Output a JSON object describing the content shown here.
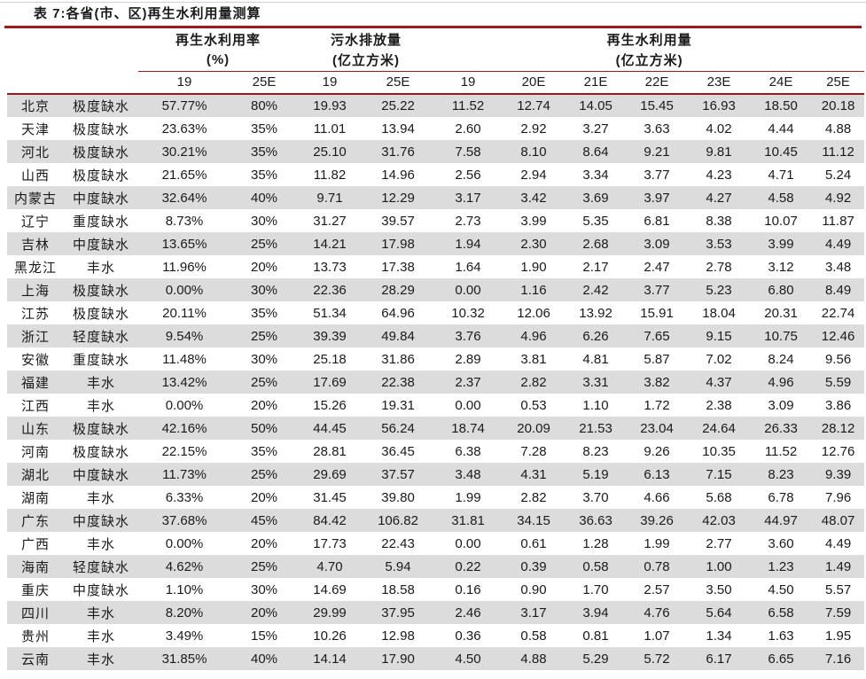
{
  "title": "表 7:各省(市、区)再生水利用量测算",
  "colors": {
    "accent_line": "#9B1A1D",
    "row_alt_background": "#DCDCDC",
    "text": "#1A1A1A"
  },
  "table": {
    "column_groups": [
      {
        "title": "再生水利用率",
        "unit": "(%)",
        "span": 2
      },
      {
        "title": "污水排放量",
        "unit": "(亿立方米)",
        "span": 2
      },
      {
        "title": "再生水利用量",
        "unit": "(亿立方米)",
        "span": 7
      }
    ],
    "year_headers": [
      "19",
      "25E",
      "19",
      "25E",
      "19",
      "20E",
      "21E",
      "22E",
      "23E",
      "24E",
      "25E"
    ],
    "rows": [
      {
        "province": "北京",
        "scarcity": "极度缺水",
        "values": [
          "57.77%",
          "80%",
          "19.93",
          "25.22",
          "11.52",
          "12.74",
          "14.05",
          "15.45",
          "16.93",
          "18.50",
          "20.18"
        ]
      },
      {
        "province": "天津",
        "scarcity": "极度缺水",
        "values": [
          "23.63%",
          "35%",
          "11.01",
          "13.94",
          "2.60",
          "2.92",
          "3.27",
          "3.63",
          "4.02",
          "4.44",
          "4.88"
        ]
      },
      {
        "province": "河北",
        "scarcity": "极度缺水",
        "values": [
          "30.21%",
          "35%",
          "25.10",
          "31.76",
          "7.58",
          "8.10",
          "8.64",
          "9.21",
          "9.81",
          "10.45",
          "11.12"
        ]
      },
      {
        "province": "山西",
        "scarcity": "极度缺水",
        "values": [
          "21.65%",
          "35%",
          "11.82",
          "14.96",
          "2.56",
          "2.94",
          "3.34",
          "3.77",
          "4.23",
          "4.71",
          "5.24"
        ]
      },
      {
        "province": "内蒙古",
        "scarcity": "中度缺水",
        "values": [
          "32.64%",
          "40%",
          "9.71",
          "12.29",
          "3.17",
          "3.42",
          "3.69",
          "3.97",
          "4.27",
          "4.58",
          "4.92"
        ]
      },
      {
        "province": "辽宁",
        "scarcity": "重度缺水",
        "values": [
          "8.73%",
          "30%",
          "31.27",
          "39.57",
          "2.73",
          "3.99",
          "5.35",
          "6.81",
          "8.38",
          "10.07",
          "11.87"
        ]
      },
      {
        "province": "吉林",
        "scarcity": "中度缺水",
        "values": [
          "13.65%",
          "25%",
          "14.21",
          "17.98",
          "1.94",
          "2.30",
          "2.68",
          "3.09",
          "3.53",
          "3.99",
          "4.49"
        ]
      },
      {
        "province": "黑龙江",
        "scarcity": "丰水",
        "values": [
          "11.96%",
          "20%",
          "13.73",
          "17.38",
          "1.64",
          "1.90",
          "2.17",
          "2.47",
          "2.78",
          "3.12",
          "3.48"
        ]
      },
      {
        "province": "上海",
        "scarcity": "极度缺水",
        "values": [
          "0.00%",
          "30%",
          "22.36",
          "28.29",
          "0.00",
          "1.16",
          "2.42",
          "3.77",
          "5.23",
          "6.80",
          "8.49"
        ]
      },
      {
        "province": "江苏",
        "scarcity": "极度缺水",
        "values": [
          "20.11%",
          "35%",
          "51.34",
          "64.96",
          "10.32",
          "12.06",
          "13.92",
          "15.91",
          "18.04",
          "20.31",
          "22.74"
        ]
      },
      {
        "province": "浙江",
        "scarcity": "轻度缺水",
        "values": [
          "9.54%",
          "25%",
          "39.39",
          "49.84",
          "3.76",
          "4.96",
          "6.26",
          "7.65",
          "9.15",
          "10.75",
          "12.46"
        ]
      },
      {
        "province": "安徽",
        "scarcity": "重度缺水",
        "values": [
          "11.48%",
          "30%",
          "25.18",
          "31.86",
          "2.89",
          "3.81",
          "4.81",
          "5.87",
          "7.02",
          "8.24",
          "9.56"
        ]
      },
      {
        "province": "福建",
        "scarcity": "丰水",
        "values": [
          "13.42%",
          "25%",
          "17.69",
          "22.38",
          "2.37",
          "2.82",
          "3.31",
          "3.82",
          "4.37",
          "4.96",
          "5.59"
        ]
      },
      {
        "province": "江西",
        "scarcity": "丰水",
        "values": [
          "0.00%",
          "20%",
          "15.26",
          "19.31",
          "0.00",
          "0.53",
          "1.10",
          "1.72",
          "2.38",
          "3.09",
          "3.86"
        ]
      },
      {
        "province": "山东",
        "scarcity": "极度缺水",
        "values": [
          "42.16%",
          "50%",
          "44.45",
          "56.24",
          "18.74",
          "20.09",
          "21.53",
          "23.04",
          "24.64",
          "26.33",
          "28.12"
        ]
      },
      {
        "province": "河南",
        "scarcity": "极度缺水",
        "values": [
          "22.15%",
          "35%",
          "28.81",
          "36.45",
          "6.38",
          "7.28",
          "8.23",
          "9.26",
          "10.35",
          "11.52",
          "12.76"
        ]
      },
      {
        "province": "湖北",
        "scarcity": "中度缺水",
        "values": [
          "11.73%",
          "25%",
          "29.69",
          "37.57",
          "3.48",
          "4.31",
          "5.19",
          "6.13",
          "7.15",
          "8.23",
          "9.39"
        ]
      },
      {
        "province": "湖南",
        "scarcity": "丰水",
        "values": [
          "6.33%",
          "20%",
          "31.45",
          "39.80",
          "1.99",
          "2.82",
          "3.70",
          "4.66",
          "5.68",
          "6.78",
          "7.96"
        ]
      },
      {
        "province": "广东",
        "scarcity": "中度缺水",
        "values": [
          "37.68%",
          "45%",
          "84.42",
          "106.82",
          "31.81",
          "34.15",
          "36.63",
          "39.26",
          "42.03",
          "44.97",
          "48.07"
        ]
      },
      {
        "province": "广西",
        "scarcity": "丰水",
        "values": [
          "0.00%",
          "20%",
          "17.73",
          "22.43",
          "0.00",
          "0.61",
          "1.28",
          "1.99",
          "2.77",
          "3.60",
          "4.49"
        ]
      },
      {
        "province": "海南",
        "scarcity": "轻度缺水",
        "values": [
          "4.62%",
          "25%",
          "4.70",
          "5.94",
          "0.22",
          "0.39",
          "0.58",
          "0.78",
          "1.00",
          "1.23",
          "1.49"
        ]
      },
      {
        "province": "重庆",
        "scarcity": "中度缺水",
        "values": [
          "1.10%",
          "30%",
          "14.69",
          "18.58",
          "0.16",
          "0.90",
          "1.70",
          "2.57",
          "3.50",
          "4.50",
          "5.57"
        ]
      },
      {
        "province": "四川",
        "scarcity": "丰水",
        "values": [
          "8.20%",
          "20%",
          "29.99",
          "37.95",
          "2.46",
          "3.17",
          "3.94",
          "4.76",
          "5.64",
          "6.58",
          "7.59"
        ]
      },
      {
        "province": "贵州",
        "scarcity": "丰水",
        "values": [
          "3.49%",
          "15%",
          "10.26",
          "12.98",
          "0.36",
          "0.58",
          "0.81",
          "1.07",
          "1.34",
          "1.63",
          "1.95"
        ]
      },
      {
        "province": "云南",
        "scarcity": "丰水",
        "values": [
          "31.85%",
          "40%",
          "14.14",
          "17.90",
          "4.50",
          "4.88",
          "5.29",
          "5.72",
          "6.17",
          "6.65",
          "7.16"
        ]
      }
    ]
  }
}
